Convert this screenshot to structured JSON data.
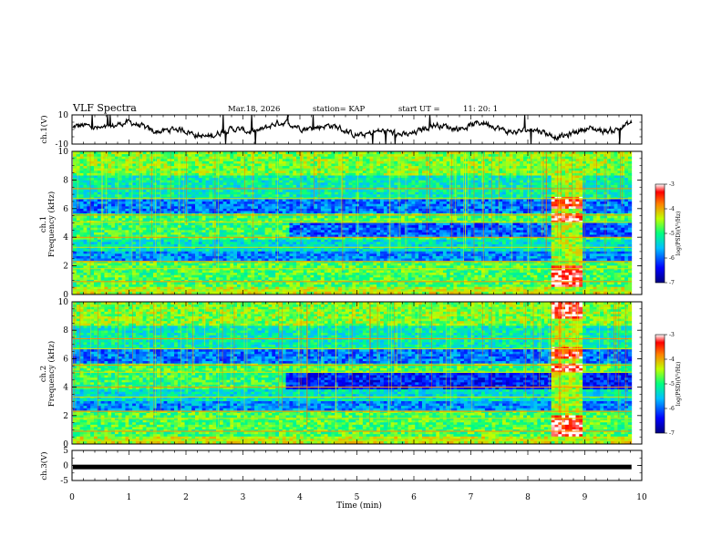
{
  "header": {
    "title": "VLF Spectra",
    "date": "Mar.18, 2026",
    "station": "station= KAP",
    "start_label": "start  UT  =",
    "start_time": "11: 20: 1"
  },
  "chart_data": [
    {
      "type": "line",
      "name": "ch1-waveform",
      "ylabel": "ch.1(V)",
      "ylim": [
        -10,
        10
      ],
      "yticks": [
        "10",
        "-10"
      ],
      "xlim": [
        0,
        10
      ],
      "description_values": "noisy waveform fluctuating roughly between -8 and 8 V"
    },
    {
      "type": "heatmap",
      "name": "ch1-spectrogram",
      "ylabel": "Frequency (kHz)",
      "ylabel_prefix": "ch.1",
      "ylim": [
        0,
        10
      ],
      "yticks": [
        "0",
        "2",
        "4",
        "6",
        "8",
        "10"
      ],
      "xlim": [
        0,
        10
      ],
      "colorbar": {
        "label": "log(PSD)(V²/Hz)",
        "range": [
          -7,
          -3
        ],
        "ticks": [
          "-3",
          "-4",
          "-5",
          "-6",
          "-7"
        ]
      }
    },
    {
      "type": "heatmap",
      "name": "ch2-spectrogram",
      "ylabel": "Frequency (kHz)",
      "ylabel_prefix": "ch.2",
      "ylim": [
        0,
        10
      ],
      "yticks": [
        "0",
        "2",
        "4",
        "6",
        "8",
        "10"
      ],
      "xlim": [
        0,
        10
      ],
      "colorbar": {
        "label": "log(PSD)(V²/Hz)",
        "range": [
          -7,
          -3
        ],
        "ticks": [
          "-3",
          "-4",
          "-5",
          "-6",
          "-7"
        ]
      }
    },
    {
      "type": "line",
      "name": "ch3-waveform",
      "ylabel": "ch.3(V)",
      "ylim": [
        -5,
        5
      ],
      "yticks": [
        "5",
        "0",
        "-5"
      ],
      "xlim": [
        0,
        10
      ],
      "value": -0.5
    }
  ],
  "xaxis": {
    "label": "Time  (min)",
    "ticks": [
      "0",
      "1",
      "2",
      "3",
      "4",
      "5",
      "6",
      "7",
      "8",
      "9",
      "10"
    ]
  }
}
